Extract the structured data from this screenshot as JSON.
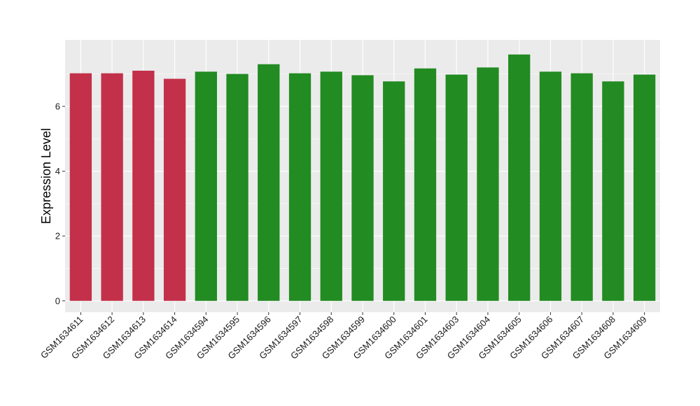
{
  "chart_data": {
    "type": "bar",
    "title": "",
    "xlabel": "",
    "ylabel": "Expression Level",
    "ylim": [
      -0.35,
      8.05
    ],
    "yticks": [
      0,
      2,
      4,
      6
    ],
    "grid": true,
    "categories": [
      "GSM1634611",
      "GSM1634612",
      "GSM1634613",
      "GSM1634614",
      "GSM1634594",
      "GSM1634595",
      "GSM1634596",
      "GSM1634597",
      "GSM1634598",
      "GSM1634599",
      "GSM1634600",
      "GSM1634601",
      "GSM1634603",
      "GSM1634604",
      "GSM1634605",
      "GSM1634606",
      "GSM1634607",
      "GSM1634608",
      "GSM1634609"
    ],
    "values": [
      7.02,
      7.02,
      7.1,
      6.85,
      7.07,
      7.0,
      7.3,
      7.02,
      7.07,
      6.96,
      6.77,
      7.17,
      6.98,
      7.2,
      7.6,
      7.07,
      7.02,
      6.77,
      6.98
    ],
    "groups": [
      "red",
      "red",
      "red",
      "red",
      "green",
      "green",
      "green",
      "green",
      "green",
      "green",
      "green",
      "green",
      "green",
      "green",
      "green",
      "green",
      "green",
      "green",
      "green"
    ],
    "colors": {
      "red": "#c3304a",
      "green": "#228b22",
      "panel": "#ebebeb",
      "grid": "#ffffff"
    }
  }
}
